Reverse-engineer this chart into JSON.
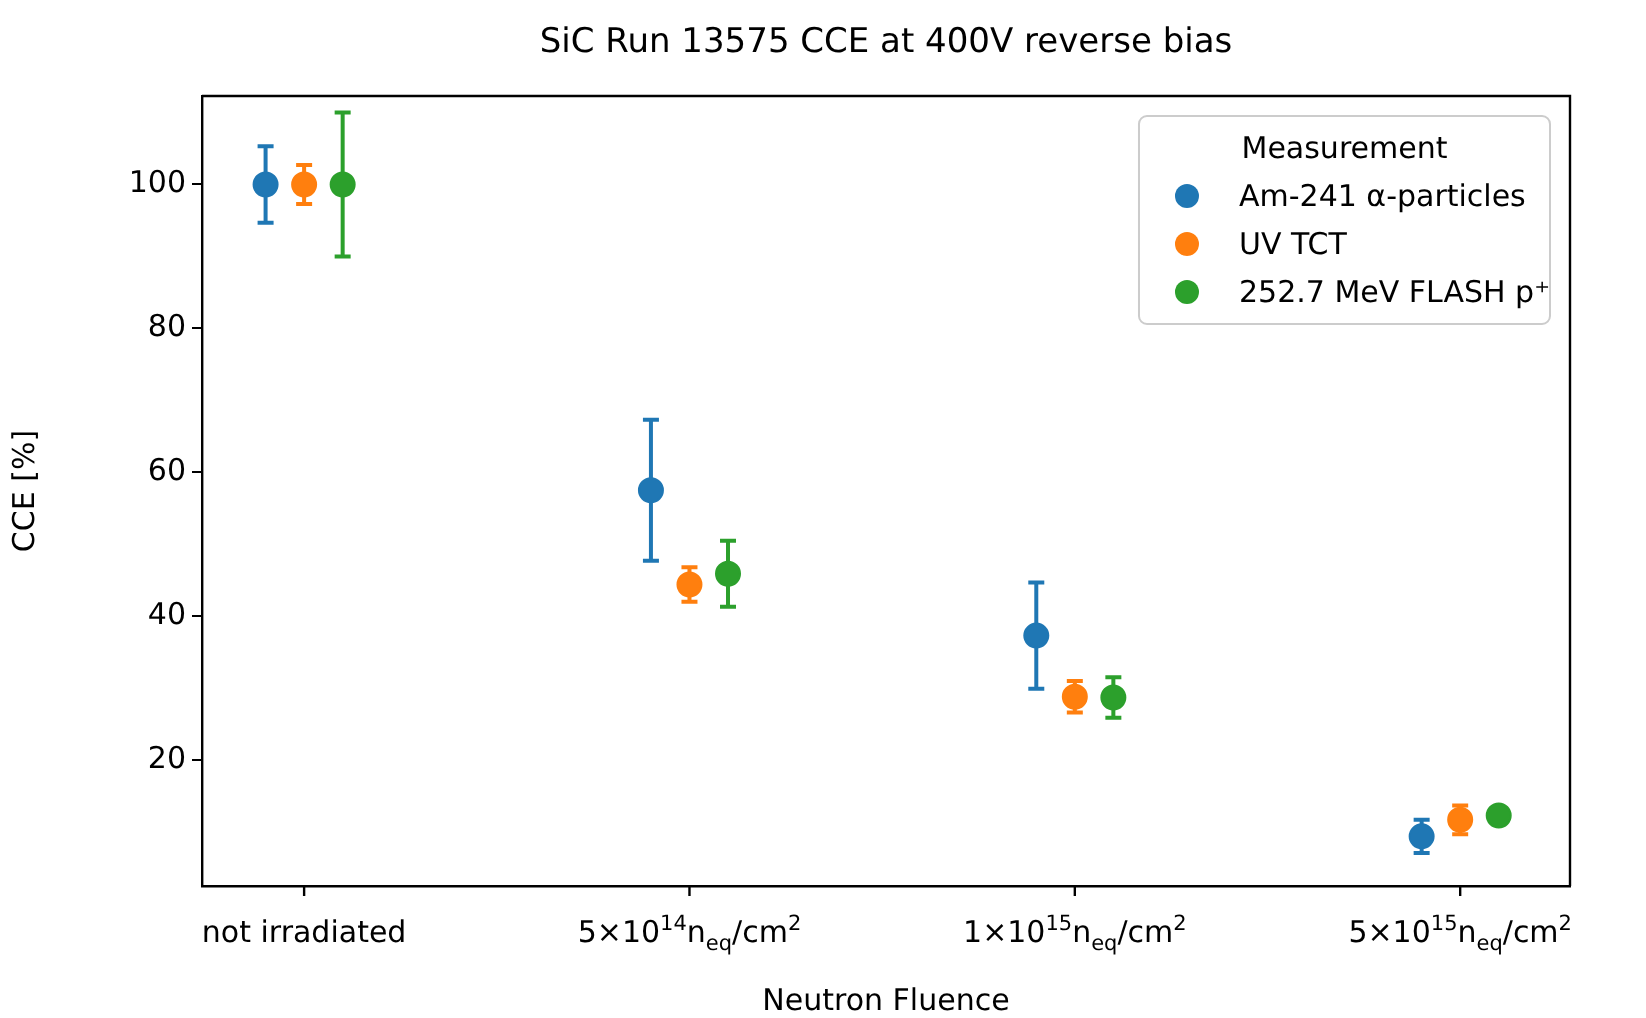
{
  "chart_data": {
    "type": "scatter",
    "title": "SiC Run 13575 CCE at 400V reverse bias",
    "xlabel": "Neutron Fluence",
    "ylabel": "CCE [%]",
    "legend_title": "Measurement",
    "categories": [
      "not irradiated",
      "5×10$^{14}$n$_{eq}$/cm$^{2}$",
      "1×10$^{15}$n$_{eq}$/cm$^{2}$",
      "5×10$^{15}$n$_{eq}$/cm$^{2}$"
    ],
    "series": [
      {
        "name": "Am-241 α-particles",
        "color": "#1f77b4",
        "values": [
          100,
          57.5,
          37.3,
          9.4
        ],
        "errors": [
          5.3,
          9.8,
          7.4,
          2.3
        ]
      },
      {
        "name": "UV TCT",
        "color": "#ff7f0e",
        "values": [
          100,
          44.4,
          28.8,
          11.7
        ],
        "errors": [
          2.7,
          2.4,
          2.2,
          2.0
        ]
      },
      {
        "name": "252.7 MeV FLASH p⁺",
        "color": "#2ca02c",
        "values": [
          100,
          45.9,
          28.7,
          12.3
        ],
        "errors": [
          10,
          4.6,
          2.8,
          0.6
        ]
      }
    ],
    "ylim": [
      2.5,
      112.3
    ],
    "yticks": [
      20,
      40,
      60,
      80,
      100
    ],
    "grid": false,
    "legend": "top right",
    "marker": "circle"
  }
}
